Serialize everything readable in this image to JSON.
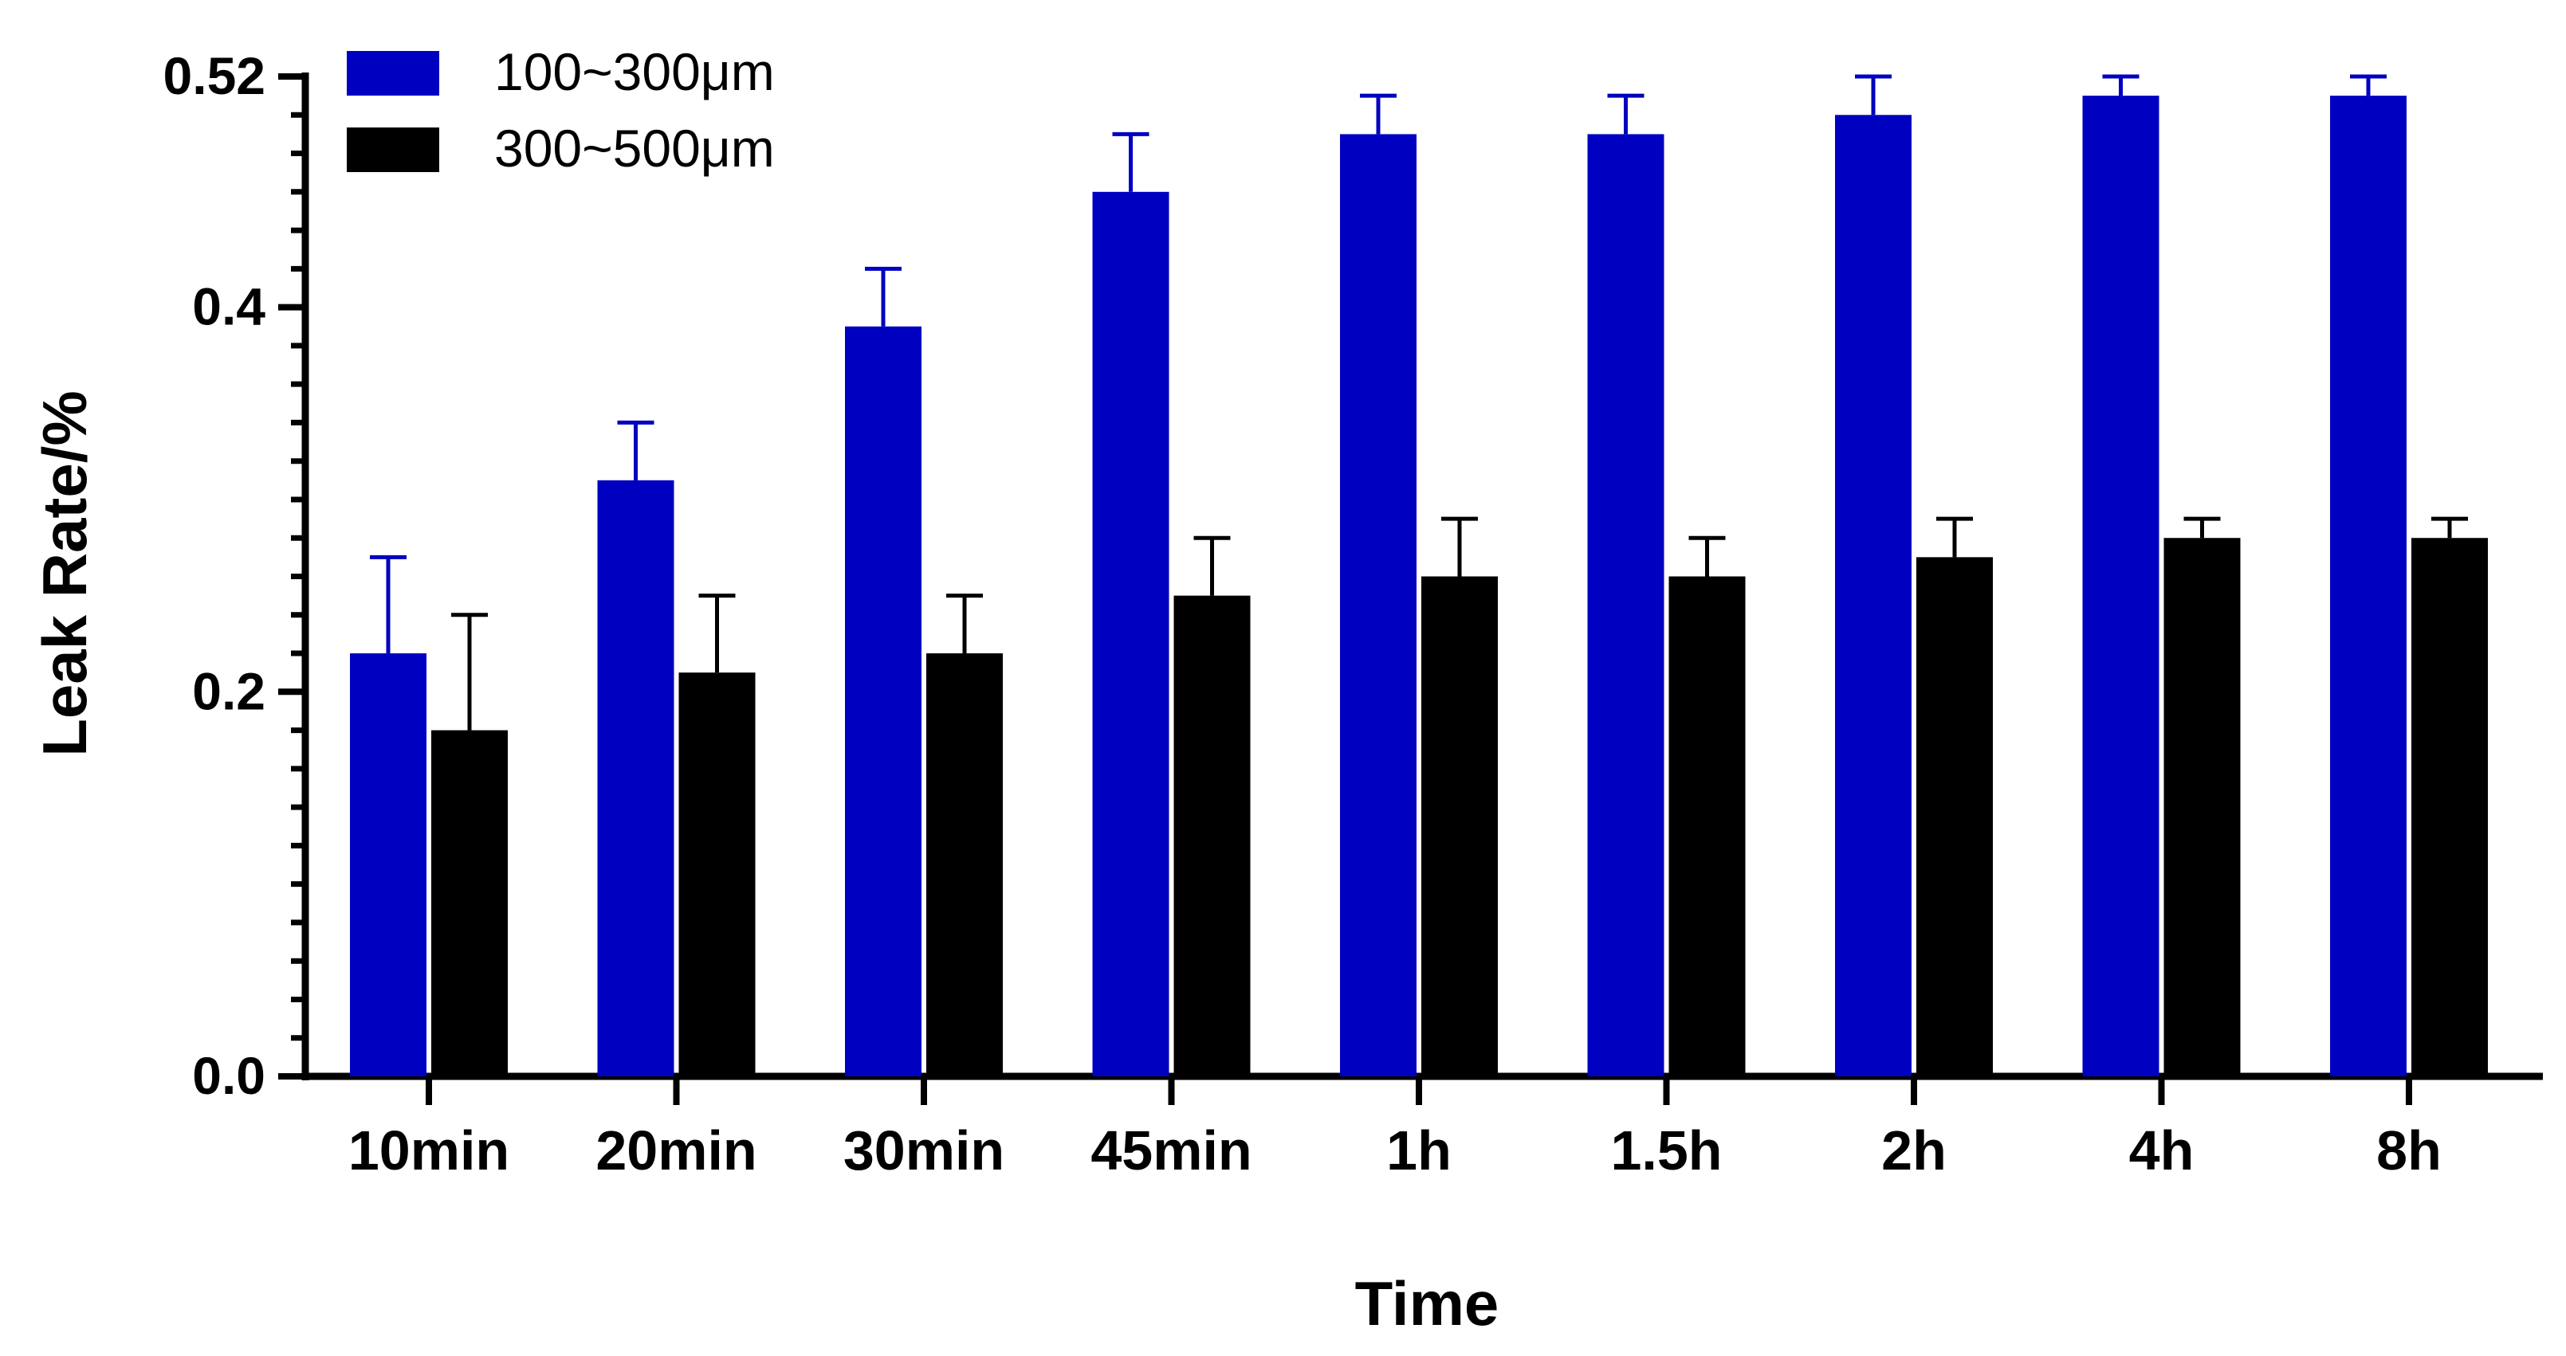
{
  "chart_data": {
    "type": "bar",
    "title": "",
    "xlabel": "Time",
    "ylabel": "Leak Rate/%",
    "categories": [
      "10min",
      "20min",
      "30min",
      "45min",
      "1h",
      "1.5h",
      "2h",
      "4h",
      "8h"
    ],
    "ylim": [
      0,
      0.52
    ],
    "yticks": [
      "0.0",
      "0.2",
      "0.4",
      "0.52"
    ],
    "ytick_values": [
      0,
      0.2,
      0.4,
      0.52
    ],
    "legend_position": "top-left",
    "series": [
      {
        "name": "100~300μm",
        "color": "#0000c0",
        "values": [
          0.22,
          0.31,
          0.39,
          0.46,
          0.49,
          0.49,
          0.5,
          0.51,
          0.51
        ],
        "error": [
          0.05,
          0.03,
          0.03,
          0.03,
          0.02,
          0.02,
          0.02,
          0.01,
          0.01
        ]
      },
      {
        "name": "300~500μm",
        "color": "#000000",
        "values": [
          0.18,
          0.21,
          0.22,
          0.25,
          0.26,
          0.26,
          0.27,
          0.28,
          0.28
        ],
        "error": [
          0.06,
          0.04,
          0.03,
          0.03,
          0.03,
          0.02,
          0.02,
          0.01,
          0.01
        ]
      }
    ]
  }
}
